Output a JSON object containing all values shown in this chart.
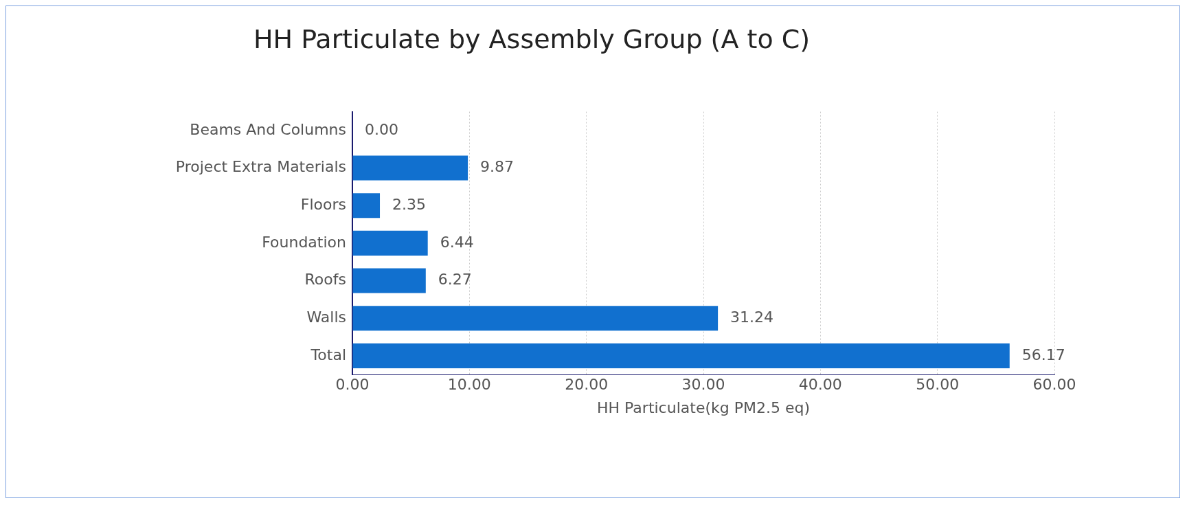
{
  "chart_data": {
    "type": "bar",
    "orientation": "horizontal",
    "title": "HH Particulate by Assembly Group (A to C)",
    "xlabel": "HH Particulate(kg PM2.5 eq)",
    "categories": [
      "Beams And Columns",
      "Project Extra Materials",
      "Floors",
      "Foundation",
      "Roofs",
      "Walls",
      "Total"
    ],
    "values": [
      0,
      9.87,
      2.35,
      6.44,
      6.27,
      31.24,
      56.17
    ],
    "value_labels": [
      "0.00",
      "9.87",
      "2.35",
      "6.44",
      "6.27",
      "31.24",
      "56.17"
    ],
    "color": "#1170cf",
    "xlim": [
      0,
      60
    ],
    "xticks": [
      {
        "value": 0,
        "label": "0.00"
      },
      {
        "value": 10,
        "label": "10.00"
      },
      {
        "value": 20,
        "label": "20.00"
      },
      {
        "value": 30,
        "label": "30.00"
      },
      {
        "value": 40,
        "label": "40.00"
      },
      {
        "value": 50,
        "label": "50.00"
      },
      {
        "value": 60,
        "label": "60.00"
      }
    ],
    "grid": "x",
    "legend": false
  }
}
